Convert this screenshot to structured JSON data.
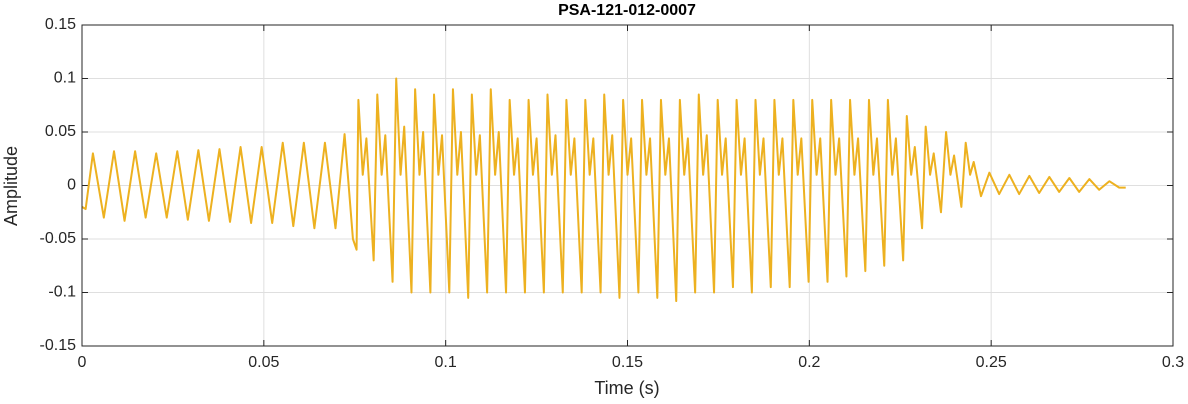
{
  "chart_data": {
    "type": "line",
    "title": "PSA-121-012-0007",
    "xlabel": "Time (s)",
    "ylabel": "Amplitude",
    "color": "#edb120",
    "grid": true,
    "xlim": [
      0,
      0.3
    ],
    "xticks": [
      0,
      0.05,
      0.1,
      0.15,
      0.2,
      0.25,
      0.3
    ],
    "ylim": [
      -0.15,
      0.15
    ],
    "yticks": [
      -0.15,
      -0.1,
      -0.05,
      0,
      0.05,
      0.1,
      0.15
    ],
    "x": [
      0,
      0.001,
      0.003,
      0.006,
      0.0088,
      0.0117,
      0.0146,
      0.0175,
      0.0204,
      0.0233,
      0.0262,
      0.0291,
      0.032,
      0.0349,
      0.0378,
      0.0407,
      0.0436,
      0.0465,
      0.0494,
      0.0523,
      0.0552,
      0.0581,
      0.061,
      0.0639,
      0.0668,
      0.0697,
      0.0722,
      0.0745,
      0.0755,
      0.076,
      0.0772,
      0.0782,
      0.0802,
      0.0812,
      0.0824,
      0.0834,
      0.0854,
      0.0864,
      0.0876,
      0.0886,
      0.0906,
      0.0916,
      0.0928,
      0.0938,
      0.0958,
      0.0968,
      0.098,
      0.099,
      0.101,
      0.102,
      0.1032,
      0.1042,
      0.1062,
      0.1072,
      0.1084,
      0.1094,
      0.1114,
      0.1124,
      0.1136,
      0.1146,
      0.1166,
      0.1176,
      0.1188,
      0.1198,
      0.1218,
      0.1228,
      0.124,
      0.125,
      0.127,
      0.128,
      0.1292,
      0.1302,
      0.1322,
      0.1332,
      0.1344,
      0.1354,
      0.1374,
      0.1384,
      0.1396,
      0.1406,
      0.1426,
      0.1436,
      0.1448,
      0.1458,
      0.1478,
      0.1488,
      0.15,
      0.151,
      0.153,
      0.154,
      0.1552,
      0.1562,
      0.1582,
      0.1592,
      0.1604,
      0.1614,
      0.1634,
      0.1644,
      0.1656,
      0.1666,
      0.1686,
      0.1696,
      0.1708,
      0.1718,
      0.1738,
      0.1748,
      0.176,
      0.177,
      0.179,
      0.18,
      0.1812,
      0.1822,
      0.1842,
      0.1852,
      0.1864,
      0.1874,
      0.1894,
      0.1904,
      0.1916,
      0.1926,
      0.1946,
      0.1956,
      0.1968,
      0.1978,
      0.1998,
      0.2008,
      0.202,
      0.203,
      0.205,
      0.206,
      0.2072,
      0.2082,
      0.2102,
      0.2112,
      0.2124,
      0.2134,
      0.2154,
      0.2164,
      0.2176,
      0.2186,
      0.2206,
      0.2216,
      0.2228,
      0.2238,
      0.2258,
      0.2268,
      0.228,
      0.229,
      0.231,
      0.232,
      0.2332,
      0.2342,
      0.2362,
      0.2376,
      0.2388,
      0.2398,
      0.2418,
      0.243,
      0.2442,
      0.2452,
      0.2472,
      0.2495,
      0.2522,
      0.255,
      0.2577,
      0.2605,
      0.2632,
      0.266,
      0.2687,
      0.2715,
      0.2742,
      0.277,
      0.2797,
      0.2825,
      0.2852,
      0.287
    ],
    "values": [
      -0.02,
      -0.022,
      0.03,
      -0.03,
      0.032,
      -0.033,
      0.032,
      -0.03,
      0.03,
      -0.03,
      0.032,
      -0.032,
      0.033,
      -0.033,
      0.034,
      -0.034,
      0.036,
      -0.035,
      0.036,
      -0.035,
      0.04,
      -0.038,
      0.04,
      -0.04,
      0.04,
      -0.04,
      0.048,
      -0.05,
      -0.06,
      0.08,
      0.01,
      0.044,
      -0.07,
      0.085,
      0.01,
      0.047,
      -0.09,
      0.1,
      0.01,
      0.055,
      -0.1,
      0.09,
      0.01,
      0.05,
      -0.1,
      0.085,
      0.01,
      0.047,
      -0.1,
      0.09,
      0.01,
      0.05,
      -0.105,
      0.085,
      0.01,
      0.047,
      -0.1,
      0.09,
      0.01,
      0.05,
      -0.1,
      0.08,
      0.01,
      0.044,
      -0.1,
      0.08,
      0.01,
      0.044,
      -0.1,
      0.085,
      0.01,
      0.047,
      -0.1,
      0.08,
      0.01,
      0.044,
      -0.1,
      0.08,
      0.01,
      0.044,
      -0.1,
      0.085,
      0.01,
      0.047,
      -0.105,
      0.08,
      0.01,
      0.044,
      -0.1,
      0.08,
      0.01,
      0.044,
      -0.105,
      0.08,
      0.01,
      0.044,
      -0.108,
      0.08,
      0.01,
      0.044,
      -0.1,
      0.085,
      0.01,
      0.047,
      -0.1,
      0.08,
      0.01,
      0.044,
      -0.095,
      0.08,
      0.01,
      0.044,
      -0.1,
      0.08,
      0.01,
      0.044,
      -0.095,
      0.08,
      0.01,
      0.044,
      -0.095,
      0.08,
      0.01,
      0.044,
      -0.09,
      0.08,
      0.01,
      0.044,
      -0.09,
      0.08,
      0.01,
      0.044,
      -0.085,
      0.08,
      0.01,
      0.044,
      -0.08,
      0.08,
      0.01,
      0.044,
      -0.075,
      0.08,
      0.01,
      0.044,
      -0.07,
      0.065,
      0.01,
      0.036,
      -0.04,
      0.055,
      0.01,
      0.03,
      -0.025,
      0.05,
      0.01,
      0.028,
      -0.02,
      0.04,
      0.01,
      0.022,
      -0.01,
      0.012,
      -0.008,
      0.01,
      -0.008,
      0.009,
      -0.007,
      0.008,
      -0.006,
      0.007,
      -0.006,
      0.006,
      -0.004,
      0.004,
      -0.002,
      -0.002
    ]
  }
}
